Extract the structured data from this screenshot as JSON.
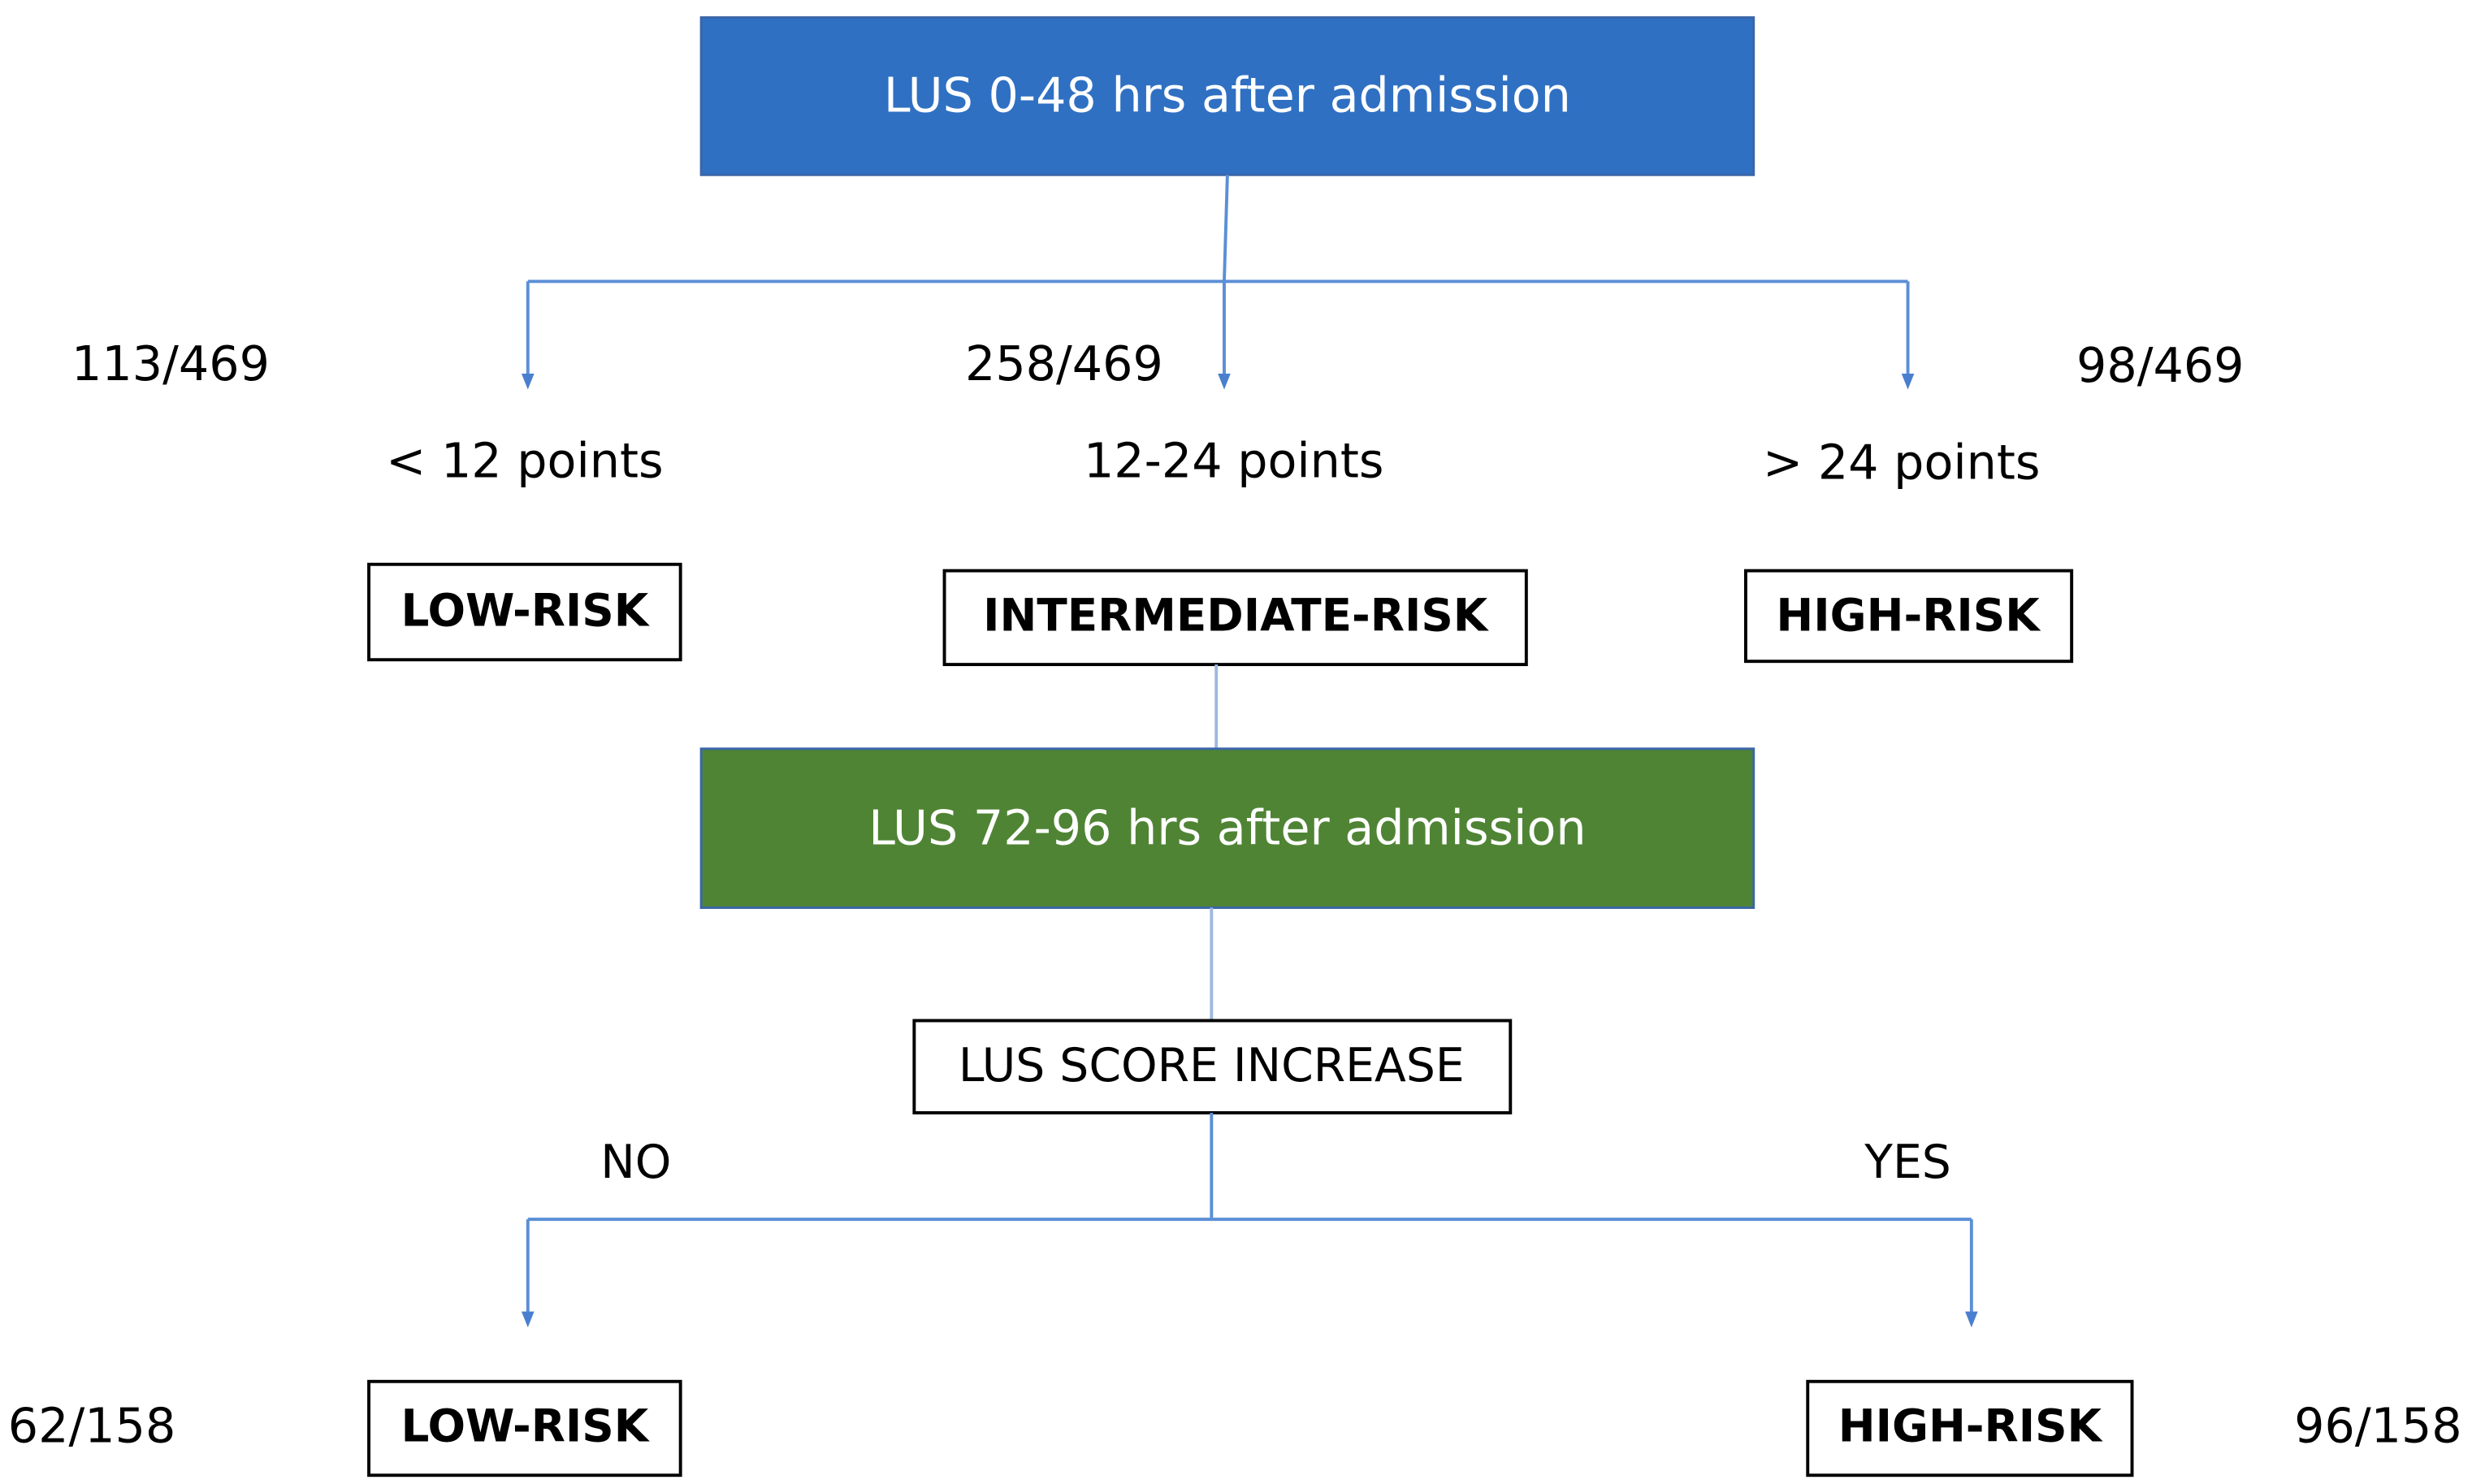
{
  "first_assessment": {
    "label": "LUS  0-48 hrs after admission"
  },
  "first_branches": [
    {
      "count": "113/469",
      "points": "< 12 points",
      "risk": "LOW-RISK"
    },
    {
      "count": "258/469",
      "points": "12-24 points",
      "risk": "INTERMEDIATE-RISK"
    },
    {
      "count": "98/469",
      "points": "> 24 points",
      "risk": "HIGH-RISK"
    }
  ],
  "second_assessment": {
    "label": "LUS 72-96 hrs after admission"
  },
  "decision": {
    "label": "LUS SCORE INCREASE"
  },
  "second_branches": [
    {
      "answer": "NO",
      "count": "62/158",
      "risk": "LOW-RISK"
    },
    {
      "answer": "YES",
      "count": "96/158",
      "risk": "HIGH-RISK"
    }
  ]
}
